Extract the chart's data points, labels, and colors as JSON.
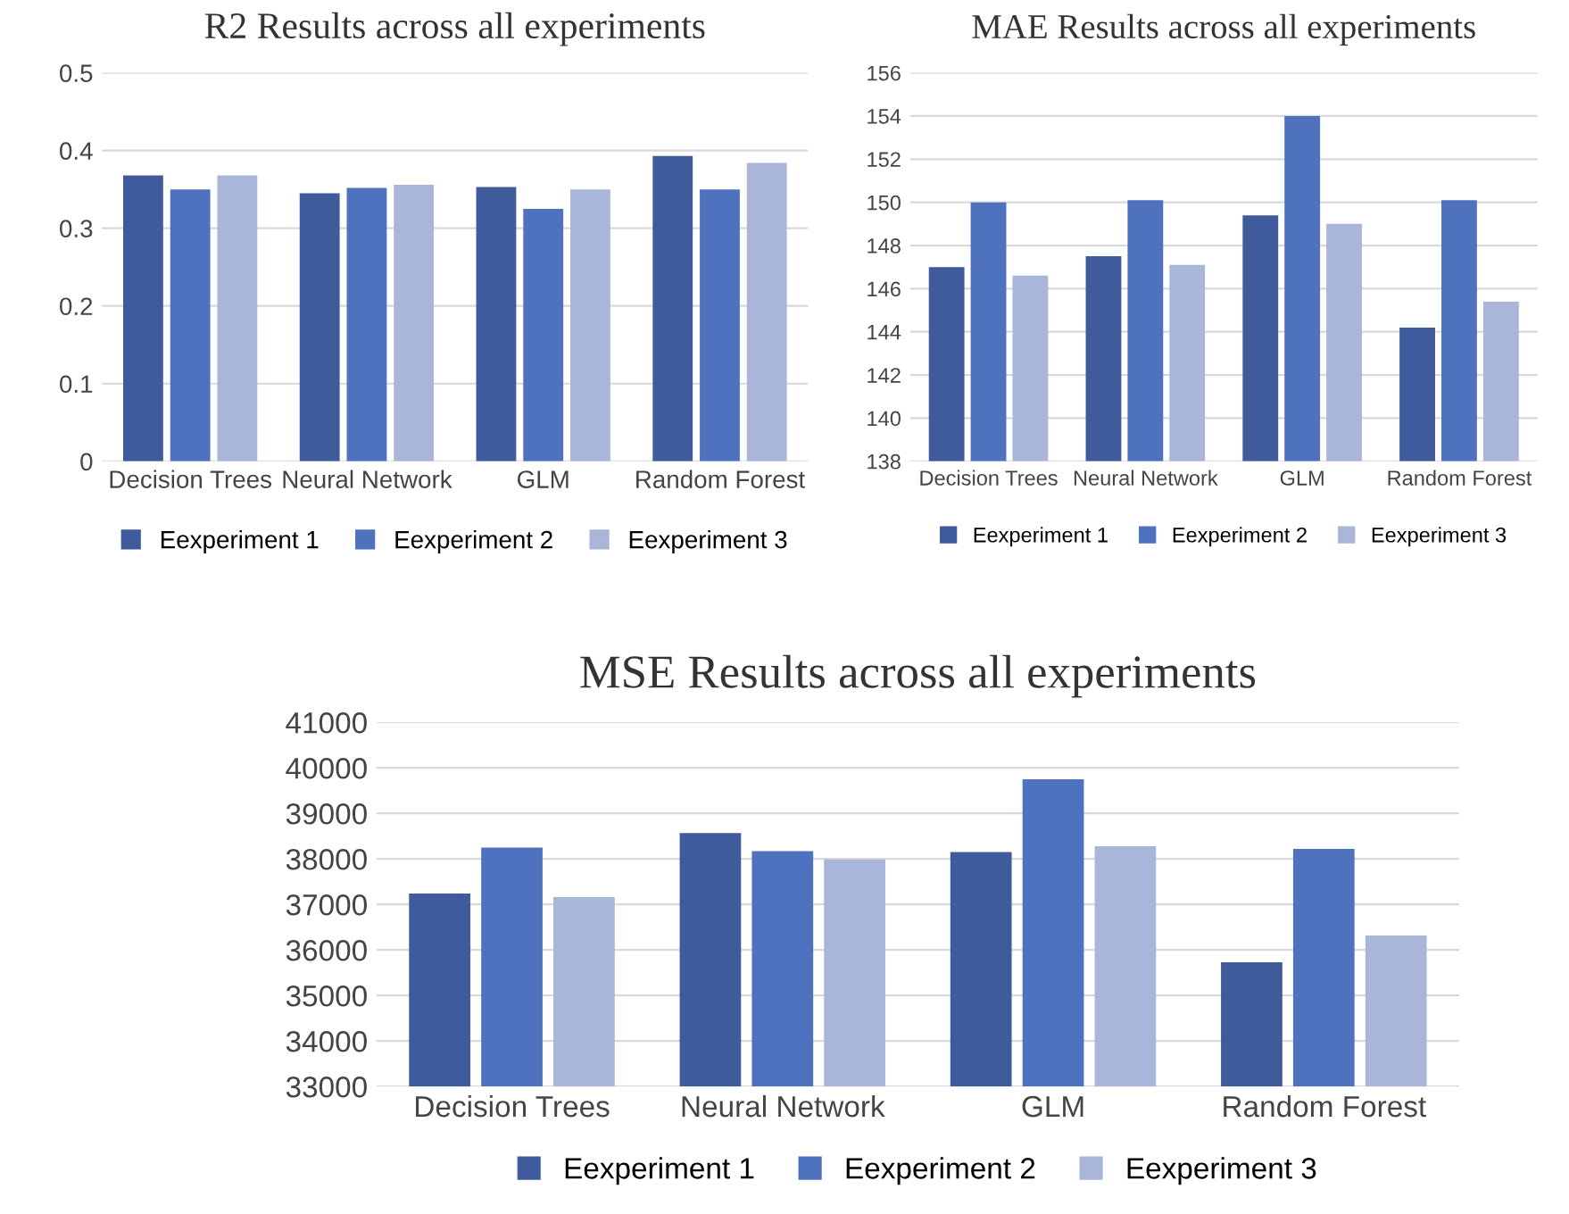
{
  "chart_data": [
    {
      "type": "bar",
      "title": "R2 Results across all experiments",
      "categories": [
        "Decision Trees",
        "Neural Network",
        "GLM",
        "Random Forest"
      ],
      "ylim": [
        0,
        0.5
      ],
      "yticks": [
        0,
        0.1,
        0.2,
        0.3,
        0.4,
        0.5
      ],
      "grid": "y",
      "legend": "bottom",
      "series": [
        {
          "name": "Eexperiment 1",
          "color": "#3f5b9c",
          "values": [
            0.368,
            0.345,
            0.353,
            0.393
          ]
        },
        {
          "name": "Eexperiment 2",
          "color": "#4f72be",
          "values": [
            0.35,
            0.352,
            0.325,
            0.35
          ]
        },
        {
          "name": "Eexperiment 3",
          "color": "#a9b5d9",
          "values": [
            0.368,
            0.356,
            0.35,
            0.384
          ]
        }
      ]
    },
    {
      "type": "bar",
      "title": "MAE Results across all experiments",
      "categories": [
        "Decision Trees",
        "Neural Network",
        "GLM",
        "Random Forest"
      ],
      "ylim": [
        138,
        156
      ],
      "yticks": [
        138,
        140,
        142,
        144,
        146,
        148,
        150,
        152,
        154,
        156
      ],
      "grid": "y",
      "legend": "bottom",
      "series": [
        {
          "name": "Eexperiment 1",
          "color": "#3f5b9c",
          "values": [
            147.0,
            147.5,
            149.4,
            144.2
          ]
        },
        {
          "name": "Eexperiment 2",
          "color": "#4f72be",
          "values": [
            150.0,
            150.1,
            154.0,
            150.1
          ]
        },
        {
          "name": "Eexperiment 3",
          "color": "#a9b5d9",
          "values": [
            146.6,
            147.1,
            149.0,
            145.4
          ]
        }
      ]
    },
    {
      "type": "bar",
      "title": "MSE Results across all experiments",
      "categories": [
        "Decision Trees",
        "Neural Network",
        "GLM",
        "Random Forest"
      ],
      "ylim": [
        33000,
        41000
      ],
      "yticks": [
        33000,
        34000,
        35000,
        36000,
        37000,
        38000,
        39000,
        40000,
        41000
      ],
      "grid": "y",
      "legend": "bottom",
      "series": [
        {
          "name": "Eexperiment 1",
          "color": "#3f5b9c",
          "values": [
            37240,
            38570,
            38150,
            35730
          ]
        },
        {
          "name": "Eexperiment 2",
          "color": "#4f72be",
          "values": [
            38250,
            38170,
            39750,
            38220
          ]
        },
        {
          "name": "Eexperiment 3",
          "color": "#a9b5d9",
          "values": [
            37160,
            37990,
            38280,
            36320
          ]
        }
      ]
    }
  ]
}
